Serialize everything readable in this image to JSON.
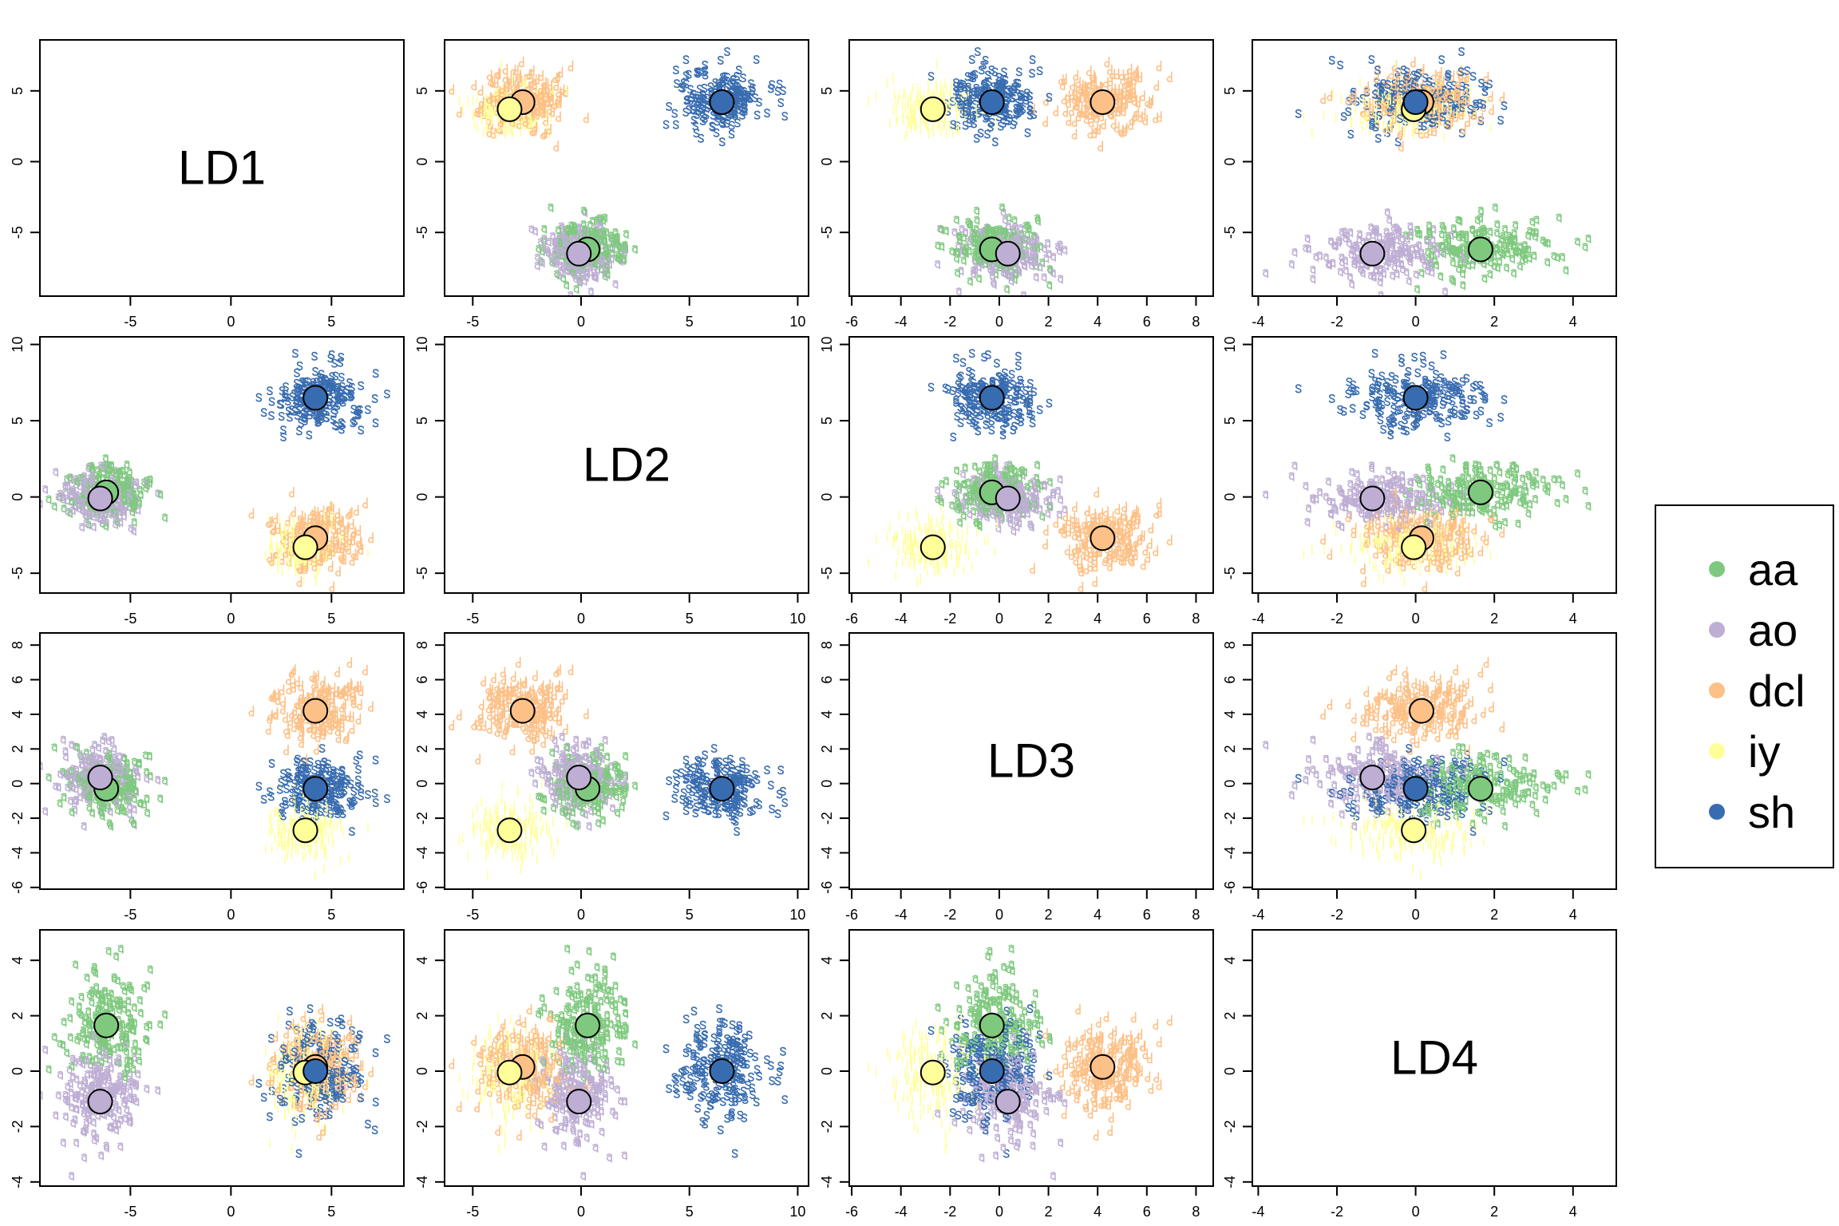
{
  "chart_data": {
    "type": "scatter",
    "layout": "scatterplot-matrix",
    "variables": [
      "LD1",
      "LD2",
      "LD3",
      "LD4"
    ],
    "axes": {
      "LD1": {
        "range": [
          -9.5,
          8.6
        ],
        "ticks": [
          -5,
          0,
          5
        ]
      },
      "LD2": {
        "range": [
          -6.3,
          10.5
        ],
        "ticks": [
          -5,
          0,
          5,
          10
        ]
      },
      "LD3": {
        "range": [
          -6.1,
          8.7
        ],
        "ticks": [
          -6,
          -4,
          -2,
          0,
          2,
          4,
          6,
          8
        ]
      },
      "LD4": {
        "range": [
          -4.15,
          5.1
        ],
        "ticks": [
          -4,
          -2,
          0,
          2,
          4
        ]
      }
    },
    "grid": false,
    "legend_position": "right",
    "classes": [
      {
        "name": "aa",
        "color": "#7FC97F",
        "symbol": "a",
        "centroid": {
          "LD1": -6.2,
          "LD2": 0.3,
          "LD3": -0.3,
          "LD4": 1.65
        },
        "approx_sd": [
          1.0,
          0.9,
          0.9,
          0.9
        ]
      },
      {
        "name": "ao",
        "color": "#BEAED4",
        "symbol": "a",
        "centroid": {
          "LD1": -6.5,
          "LD2": -0.1,
          "LD3": 0.35,
          "LD4": -1.1
        },
        "approx_sd": [
          1.0,
          0.9,
          0.9,
          0.9
        ]
      },
      {
        "name": "dcl",
        "color": "#FDC086",
        "symbol": "d",
        "centroid": {
          "LD1": 4.2,
          "LD2": -2.7,
          "LD3": 4.2,
          "LD4": 0.15
        },
        "approx_sd": [
          1.1,
          1.1,
          1.0,
          0.9
        ]
      },
      {
        "name": "iy",
        "color": "#FFFF99",
        "symbol": "i",
        "centroid": {
          "LD1": 3.7,
          "LD2": -3.3,
          "LD3": -2.7,
          "LD4": -0.05
        },
        "approx_sd": [
          0.9,
          0.9,
          0.9,
          0.8
        ]
      },
      {
        "name": "sh",
        "color": "#386CB0",
        "symbol": "s",
        "centroid": {
          "LD1": 4.2,
          "LD2": 6.5,
          "LD3": -0.3,
          "LD4": 0.0
        },
        "approx_sd": [
          1.1,
          1.1,
          0.9,
          0.9
        ]
      }
    ]
  },
  "legend": {
    "items": [
      {
        "label": "aa",
        "color": "#7FC97F"
      },
      {
        "label": "ao",
        "color": "#BEAED4"
      },
      {
        "label": "dcl",
        "color": "#FDC086"
      },
      {
        "label": "iy",
        "color": "#FFFF99"
      },
      {
        "label": "sh",
        "color": "#386CB0"
      }
    ]
  }
}
